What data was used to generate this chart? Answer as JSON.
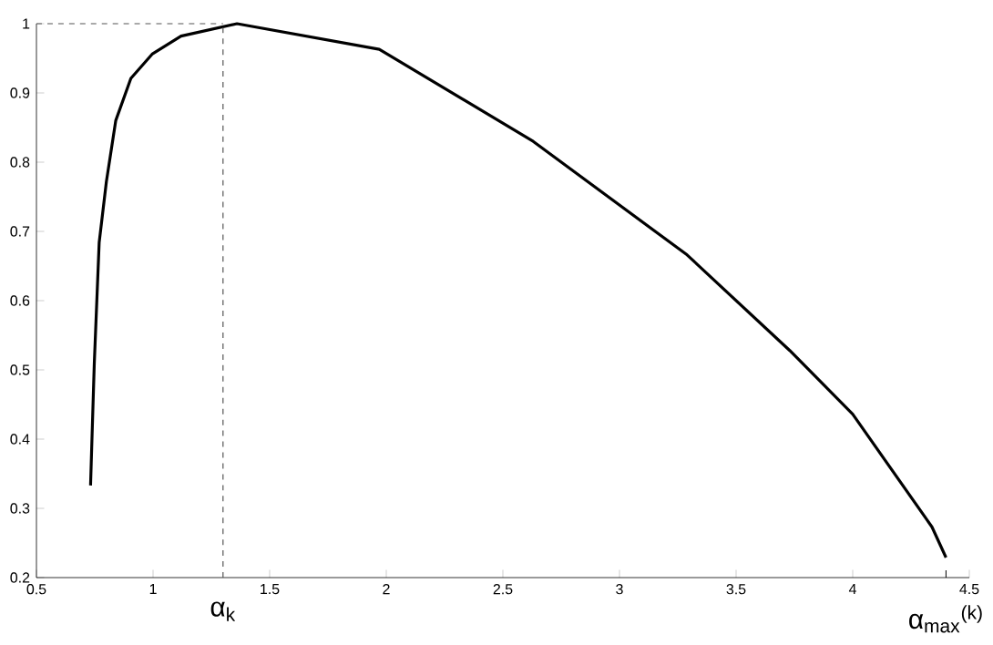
{
  "chart_data": {
    "type": "line",
    "x": [
      0.732,
      0.748,
      0.769,
      0.8,
      0.84,
      0.905,
      0.996,
      1.12,
      1.36,
      1.97,
      2.63,
      3.29,
      3.73,
      4.0,
      4.34,
      4.4
    ],
    "series": [
      {
        "color": "#000000",
        "values": [
          0.333,
          0.509,
          0.684,
          0.772,
          0.86,
          0.921,
          0.956,
          0.982,
          1.0,
          0.963,
          0.83,
          0.666,
          0.528,
          0.436,
          0.273,
          0.229
        ]
      }
    ],
    "xlim": [
      0.5,
      4.5
    ],
    "ylim": [
      0.2,
      1
    ],
    "xticks": [
      0.5,
      1,
      1.5,
      2,
      2.5,
      3,
      3.5,
      4,
      4.5
    ],
    "annotations": [
      {
        "text": "α$_{max}$$^{(k)}$",
        "x": 4.4,
        "y": 0.229
      }
    ],
    "yticks": [
      0.2,
      0.3,
      0.4,
      0.5,
      0.6,
      0.7,
      0.8,
      0.9,
      1
    ],
    "ref_lines": [
      {
        "axis": "x",
        "value": 1.3,
        "label": "α$_{k}$",
        "line_style": "dashed",
        "color": "#555555"
      },
      {
        "axis": "y",
        "value": 1,
        "line_style": "dashed",
        "color": "#555555"
      }
    ],
    "grid": false,
    "marker": "none",
    "line_style": "solid"
  }
}
